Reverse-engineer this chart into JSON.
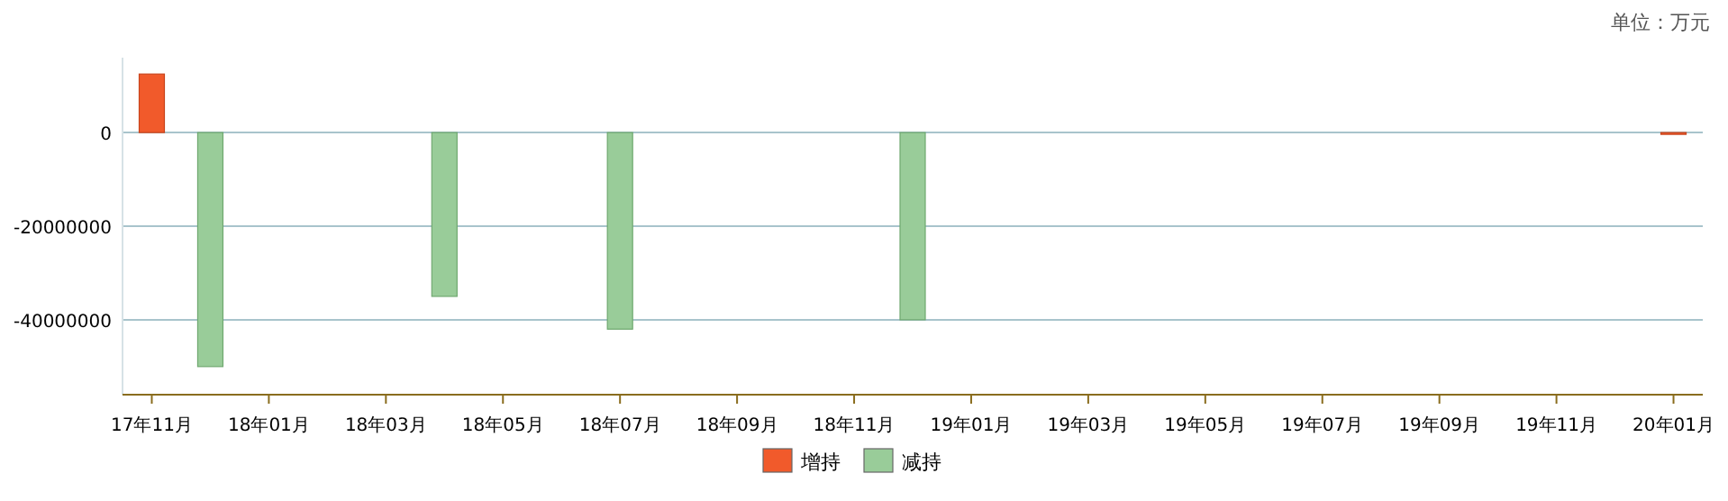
{
  "chart_data": {
    "type": "bar",
    "stacked": true,
    "annotations": [
      "单位：万元"
    ],
    "categories": [
      "17年11月",
      null,
      "18年01月",
      null,
      "18年03月",
      null,
      "18年05月",
      null,
      "18年07月",
      null,
      "18年09月",
      null,
      "18年11月",
      null,
      "19年01月",
      null,
      "19年03月",
      null,
      "19年05月",
      null,
      "19年07月",
      null,
      "19年09月",
      null,
      "19年11月",
      null,
      "20年01月"
    ],
    "series": [
      {
        "name": "增持",
        "color": "#f15a2b",
        "values": [
          12500000,
          null,
          null,
          null,
          null,
          null,
          null,
          null,
          null,
          null,
          null,
          null,
          null,
          null,
          null,
          null,
          null,
          null,
          null,
          null,
          null,
          null,
          null,
          null,
          null,
          null,
          -300000
        ]
      },
      {
        "name": "减持",
        "color": "#99cc99",
        "values": [
          null,
          -50000000,
          null,
          null,
          null,
          -35000000,
          null,
          null,
          -42000000,
          null,
          null,
          null,
          null,
          -40000000,
          null,
          null,
          null,
          null,
          null,
          null,
          null,
          null,
          null,
          null,
          null,
          null,
          null
        ]
      }
    ],
    "ylim": [
      -56000000,
      16000000
    ],
    "yticks": [
      0,
      -20000000,
      -40000000
    ],
    "grid": "y",
    "legend": "bottom"
  }
}
